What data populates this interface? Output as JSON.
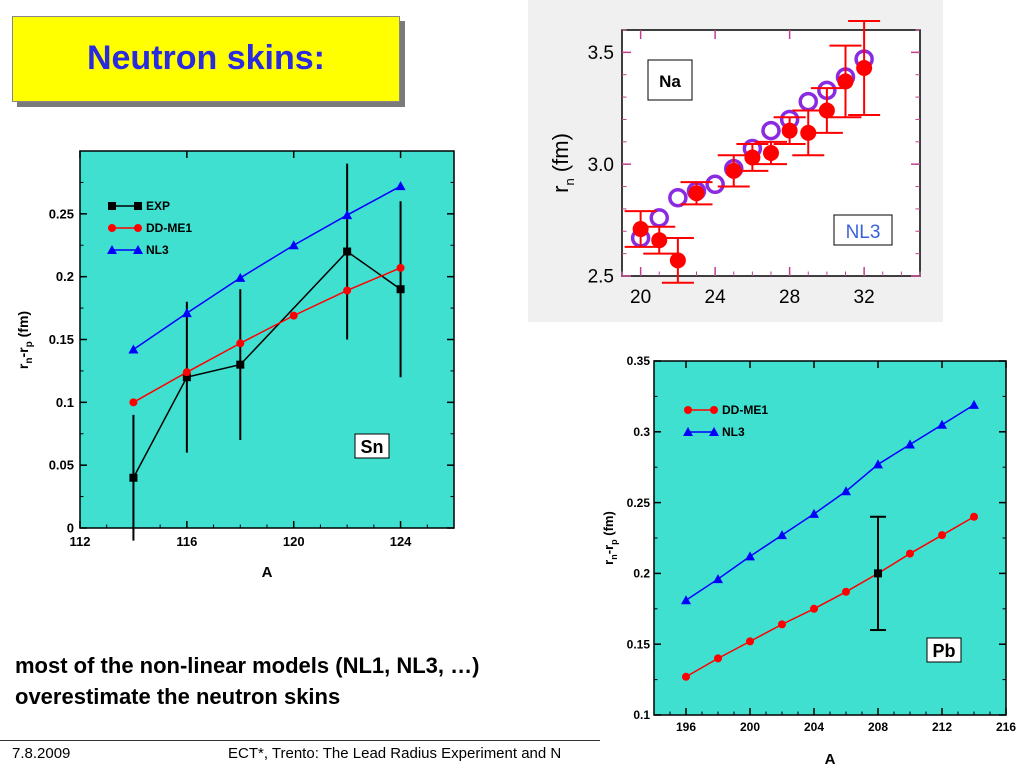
{
  "slide": {
    "title": "Neutron skins:",
    "caption_line1": "most of the non-linear models (NL1, NL3, …)",
    "caption_line2": "overestimate the neutron skins",
    "footer_date": "7.8.2009",
    "footer_conference": "ECT*, Trento: The Lead Radius Experiment and N"
  },
  "colors": {
    "panel_bg": "#40e0d0",
    "title_bg": "#ffff00",
    "title_text": "#2a2adf",
    "exp": "#000000",
    "ddme1": "#ff0000",
    "nl3": "#0000ff",
    "na_theory": "#8a2be2",
    "na_exp": "#ff0000"
  },
  "chart_data": [
    {
      "id": "sn",
      "type": "line",
      "panel_label": "Sn",
      "xlabel": "A",
      "ylabel": "r_n-r_p (fm)",
      "xlim": [
        112,
        126
      ],
      "ylim": [
        0,
        0.3
      ],
      "xticks": [
        112,
        116,
        120,
        124
      ],
      "yticks": [
        0,
        0.05,
        0.1,
        0.15,
        0.2,
        0.25
      ],
      "ytick_labels": [
        "0",
        "0.05",
        "0.1",
        "0.15",
        "0.2",
        "0.25"
      ],
      "legend_position": "top-left",
      "series": [
        {
          "name": "EXP",
          "x": [
            114,
            116,
            118,
            122,
            124
          ],
          "y": [
            0.04,
            0.12,
            0.13,
            0.22,
            0.19
          ],
          "err": [
            0.05,
            0.06,
            0.06,
            0.07,
            0.07
          ],
          "marker": "square",
          "color": "#000000"
        },
        {
          "name": "DD-ME1",
          "x": [
            114,
            116,
            118,
            120,
            122,
            124
          ],
          "y": [
            0.1,
            0.124,
            0.147,
            0.169,
            0.189,
            0.207
          ],
          "marker": "circle",
          "color": "#ff0000"
        },
        {
          "name": "NL3",
          "x": [
            114,
            116,
            118,
            120,
            122,
            124
          ],
          "y": [
            0.142,
            0.171,
            0.199,
            0.225,
            0.249,
            0.272
          ],
          "marker": "triangle",
          "color": "#0000ff"
        }
      ]
    },
    {
      "id": "na",
      "type": "scatter",
      "panel_label": "Na",
      "model_label": "NL3",
      "xlabel": "",
      "ylabel": "r_n (fm)",
      "xlim": [
        19,
        35
      ],
      "ylim": [
        2.5,
        3.6
      ],
      "xticks": [
        20,
        24,
        28,
        32
      ],
      "yticks": [
        2.5,
        3.0,
        3.5
      ],
      "ytick_labels": [
        "2.5",
        "3.0",
        "3.5"
      ],
      "series": [
        {
          "name": "NL3",
          "x": [
            20,
            21,
            22,
            23,
            24,
            25,
            26,
            27,
            28,
            29,
            30,
            31,
            32
          ],
          "y": [
            2.67,
            2.76,
            2.85,
            2.88,
            2.91,
            2.98,
            3.07,
            3.15,
            3.2,
            3.28,
            3.33,
            3.39,
            3.47
          ],
          "marker": "open-circle",
          "color": "#8a2be2"
        },
        {
          "name": "EXP",
          "x": [
            20,
            21,
            22,
            23,
            25,
            26,
            27,
            28,
            29,
            30,
            31,
            32
          ],
          "y": [
            2.71,
            2.66,
            2.57,
            2.87,
            2.97,
            3.03,
            3.05,
            3.15,
            3.14,
            3.24,
            3.37,
            3.43
          ],
          "err": [
            0.08,
            0.06,
            0.1,
            0.05,
            0.07,
            0.06,
            0.05,
            0.06,
            0.1,
            0.1,
            0.16,
            0.21
          ],
          "marker": "circle",
          "color": "#ff0000"
        }
      ]
    },
    {
      "id": "pb",
      "type": "line",
      "panel_label": "Pb",
      "xlabel": "A",
      "ylabel": "r_n-r_p (fm)",
      "xlim": [
        194,
        216
      ],
      "ylim": [
        0.1,
        0.35
      ],
      "xticks": [
        196,
        200,
        204,
        208,
        212,
        216
      ],
      "yticks": [
        0.1,
        0.15,
        0.2,
        0.25,
        0.3,
        0.35
      ],
      "ytick_labels": [
        "0.1",
        "0.15",
        "0.2",
        "0.25",
        "0.3",
        "0.35"
      ],
      "legend_position": "top-left",
      "series": [
        {
          "name": "DD-ME1",
          "x": [
            196,
            198,
            200,
            202,
            204,
            206,
            208,
            210,
            212,
            214
          ],
          "y": [
            0.127,
            0.14,
            0.152,
            0.164,
            0.175,
            0.187,
            0.2,
            0.214,
            0.227,
            0.24
          ],
          "marker": "circle",
          "color": "#ff0000"
        },
        {
          "name": "NL3",
          "x": [
            196,
            198,
            200,
            202,
            204,
            206,
            208,
            210,
            212,
            214
          ],
          "y": [
            0.181,
            0.196,
            0.212,
            0.227,
            0.242,
            0.258,
            0.277,
            0.291,
            0.305,
            0.319
          ],
          "marker": "triangle",
          "color": "#0000ff"
        },
        {
          "name": "EXP",
          "x": [
            208
          ],
          "y": [
            0.2
          ],
          "err": [
            0.04
          ],
          "marker": "square",
          "color": "#000000"
        }
      ]
    }
  ]
}
